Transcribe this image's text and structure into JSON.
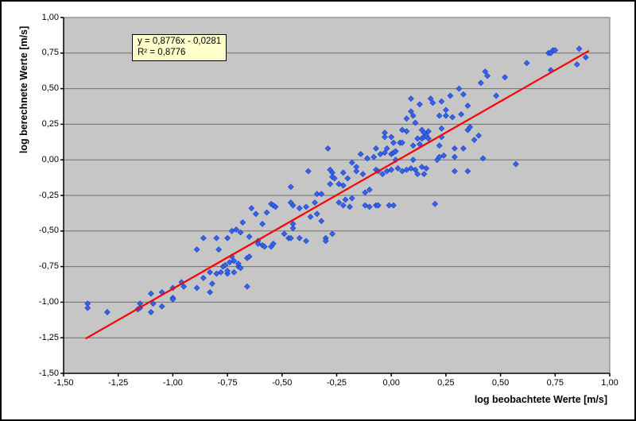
{
  "chart_data": {
    "type": "scatter",
    "title": "",
    "xlabel": "log beobachtete Werte [m/s]",
    "ylabel": "log berechnete Werte [m/s]",
    "xlim": [
      -1.5,
      1.0
    ],
    "ylim": [
      -1.5,
      1.0
    ],
    "grid": "horizontal gridlines only",
    "legend": "none",
    "plot_bg": "#C6C6C6",
    "grid_color": "#707070",
    "marker_color": "#3565EE",
    "marker_edge": "#1E3FC0",
    "x_ticks": [
      -1.5,
      -1.25,
      -1.0,
      -0.75,
      -0.5,
      -0.25,
      0.0,
      0.25,
      0.5,
      0.75,
      1.0
    ],
    "x_tick_labels": [
      "-1,50",
      "-1,25",
      "-1,00",
      "-0,75",
      "-0,50",
      "-0,25",
      "0,00",
      "0,25",
      "0,50",
      "0,75",
      "1,00"
    ],
    "y_ticks": [
      1.0,
      0.75,
      0.5,
      0.25,
      0.0,
      -0.25,
      -0.5,
      -0.75,
      -1.0,
      -1.25,
      -1.5
    ],
    "y_tick_labels": [
      "1,00",
      "0,75",
      "0,50",
      "0,25",
      "0,00",
      "-0,25",
      "-0,50",
      "-0,75",
      "-1,00",
      "-1,25",
      "-1,50"
    ],
    "trendline": {
      "slope": 0.8776,
      "intercept": -0.0281,
      "x_start": -1.4,
      "x_end": 0.905,
      "color": "#FF0000",
      "equation_label": "y = 0,8776x - 0,0281",
      "r2_label": "R² = 0,8776"
    },
    "points": [
      [
        -1.39,
        -1.01
      ],
      [
        -1.39,
        -1.04
      ],
      [
        -1.3,
        -1.07
      ],
      [
        -1.15,
        -1.01
      ],
      [
        -1.16,
        -1.05
      ],
      [
        -1.15,
        -1.04
      ],
      [
        -1.1,
        -0.94
      ],
      [
        -1.09,
        -1.01
      ],
      [
        -1.1,
        -1.07
      ],
      [
        -1.05,
        -0.93
      ],
      [
        -1.05,
        -1.03
      ],
      [
        -1.0,
        -0.9
      ],
      [
        -1.0,
        -0.97
      ],
      [
        -1.0,
        -0.98
      ],
      [
        -0.96,
        -0.86
      ],
      [
        -0.95,
        -0.89
      ],
      [
        -0.89,
        -0.9
      ],
      [
        -0.89,
        -0.63
      ],
      [
        -0.86,
        -0.83
      ],
      [
        -0.86,
        -0.55
      ],
      [
        -0.83,
        -0.79
      ],
      [
        -0.82,
        -0.87
      ],
      [
        -0.83,
        -0.93
      ],
      [
        -0.8,
        -0.8
      ],
      [
        -0.8,
        -0.55
      ],
      [
        -0.79,
        -0.63
      ],
      [
        -0.78,
        -0.79
      ],
      [
        -0.77,
        -0.75
      ],
      [
        -0.76,
        -0.74
      ],
      [
        -0.75,
        -0.8
      ],
      [
        -0.75,
        -0.78
      ],
      [
        -0.75,
        -0.55
      ],
      [
        -0.74,
        -0.72
      ],
      [
        -0.73,
        -0.68
      ],
      [
        -0.72,
        -0.71
      ],
      [
        -0.72,
        -0.79
      ],
      [
        -0.73,
        -0.5
      ],
      [
        -0.71,
        -0.49
      ],
      [
        -0.69,
        -0.51
      ],
      [
        -0.7,
        -0.75
      ],
      [
        -0.7,
        -0.73
      ],
      [
        -0.69,
        -0.76
      ],
      [
        -0.68,
        -0.44
      ],
      [
        -0.66,
        -0.69
      ],
      [
        -0.65,
        -0.68
      ],
      [
        -0.66,
        -0.89
      ],
      [
        -0.65,
        -0.54
      ],
      [
        -0.64,
        -0.34
      ],
      [
        -0.62,
        -0.38
      ],
      [
        -0.61,
        -0.57
      ],
      [
        -0.61,
        -0.59
      ],
      [
        -0.59,
        -0.6
      ],
      [
        -0.59,
        -0.45
      ],
      [
        -0.58,
        -0.61
      ],
      [
        -0.57,
        -0.37
      ],
      [
        -0.55,
        -0.31
      ],
      [
        -0.55,
        -0.61
      ],
      [
        -0.54,
        -0.32
      ],
      [
        -0.54,
        -0.59
      ],
      [
        -0.53,
        -0.33
      ],
      [
        -0.49,
        -0.52
      ],
      [
        -0.47,
        -0.55
      ],
      [
        -0.46,
        -0.55
      ],
      [
        -0.46,
        -0.19
      ],
      [
        -0.46,
        -0.3
      ],
      [
        -0.45,
        -0.32
      ],
      [
        -0.45,
        -0.45
      ],
      [
        -0.45,
        -0.48
      ],
      [
        -0.42,
        -0.34
      ],
      [
        -0.42,
        -0.55
      ],
      [
        -0.39,
        -0.33
      ],
      [
        -0.39,
        -0.57
      ],
      [
        -0.38,
        -0.08
      ],
      [
        -0.37,
        -0.4
      ],
      [
        -0.35,
        -0.3
      ],
      [
        -0.34,
        -0.24
      ],
      [
        -0.34,
        -0.38
      ],
      [
        -0.32,
        -0.24
      ],
      [
        -0.32,
        -0.43
      ],
      [
        -0.3,
        -0.55
      ],
      [
        -0.3,
        -0.57
      ],
      [
        -0.29,
        0.08
      ],
      [
        -0.28,
        -0.07
      ],
      [
        -0.28,
        -0.17
      ],
      [
        -0.27,
        -0.09
      ],
      [
        -0.27,
        -0.12
      ],
      [
        -0.26,
        -0.13
      ],
      [
        -0.27,
        -0.52
      ],
      [
        -0.24,
        -0.17
      ],
      [
        -0.24,
        -0.3
      ],
      [
        -0.22,
        -0.18
      ],
      [
        -0.22,
        -0.09
      ],
      [
        -0.22,
        -0.32
      ],
      [
        -0.21,
        -0.28
      ],
      [
        -0.2,
        -0.13
      ],
      [
        -0.19,
        -0.33
      ],
      [
        -0.18,
        -0.27
      ],
      [
        -0.18,
        -0.02
      ],
      [
        -0.16,
        -0.05
      ],
      [
        -0.16,
        -0.08
      ],
      [
        -0.14,
        0.04
      ],
      [
        -0.13,
        -0.1
      ],
      [
        -0.12,
        -0.23
      ],
      [
        -0.12,
        -0.32
      ],
      [
        -0.11,
        0.01
      ],
      [
        -0.1,
        -0.21
      ],
      [
        -0.1,
        -0.33
      ],
      [
        -0.08,
        0.02
      ],
      [
        -0.07,
        -0.07
      ],
      [
        -0.07,
        -0.32
      ],
      [
        -0.07,
        0.08
      ],
      [
        -0.06,
        -0.08
      ],
      [
        -0.05,
        0.04
      ],
      [
        -0.06,
        -0.32
      ],
      [
        -0.04,
        -0.1
      ],
      [
        -0.03,
        0.05
      ],
      [
        -0.03,
        0.19
      ],
      [
        -0.03,
        0.16
      ],
      [
        -0.02,
        0.08
      ],
      [
        -0.02,
        -0.08
      ],
      [
        -0.01,
        -0.32
      ],
      [
        0.0,
        0.04
      ],
      [
        0.0,
        0.16
      ],
      [
        0.0,
        -0.07
      ],
      [
        0.01,
        0.12
      ],
      [
        0.01,
        -0.32
      ],
      [
        0.01,
        0.05
      ],
      [
        0.02,
        0.06
      ],
      [
        0.02,
        0.0
      ],
      [
        0.03,
        -0.06
      ],
      [
        0.04,
        0.12
      ],
      [
        0.05,
        0.21
      ],
      [
        0.05,
        -0.08
      ],
      [
        0.05,
        0.12
      ],
      [
        0.07,
        0.29
      ],
      [
        0.07,
        0.2
      ],
      [
        0.07,
        -0.07
      ],
      [
        0.09,
        0.43
      ],
      [
        0.09,
        0.34
      ],
      [
        0.09,
        -0.06
      ],
      [
        0.1,
        0.1
      ],
      [
        0.1,
        0.0
      ],
      [
        0.1,
        0.31
      ],
      [
        0.11,
        -0.07
      ],
      [
        0.11,
        0.26
      ],
      [
        0.12,
        0.15
      ],
      [
        0.12,
        -0.1
      ],
      [
        0.13,
        0.39
      ],
      [
        0.13,
        0.11
      ],
      [
        0.14,
        0.21
      ],
      [
        0.14,
        -0.05
      ],
      [
        0.14,
        0.15
      ],
      [
        0.15,
        0.19
      ],
      [
        0.15,
        0.16
      ],
      [
        0.15,
        -0.1
      ],
      [
        0.16,
        0.17
      ],
      [
        0.16,
        -0.06
      ],
      [
        0.17,
        0.2
      ],
      [
        0.17,
        0.15
      ],
      [
        0.18,
        0.43
      ],
      [
        0.19,
        0.4
      ],
      [
        0.2,
        -0.31
      ],
      [
        0.21,
        0.0
      ],
      [
        0.22,
        0.02
      ],
      [
        0.22,
        0.1
      ],
      [
        0.22,
        0.31
      ],
      [
        0.23,
        0.16
      ],
      [
        0.23,
        0.41
      ],
      [
        0.23,
        0.22
      ],
      [
        0.24,
        0.03
      ],
      [
        0.25,
        0.35
      ],
      [
        0.25,
        0.31
      ],
      [
        0.27,
        0.45
      ],
      [
        0.28,
        0.3
      ],
      [
        0.29,
        0.08
      ],
      [
        0.29,
        -0.08
      ],
      [
        0.29,
        0.02
      ],
      [
        0.31,
        0.5
      ],
      [
        0.32,
        0.32
      ],
      [
        0.33,
        0.46
      ],
      [
        0.33,
        0.08
      ],
      [
        0.35,
        0.38
      ],
      [
        0.35,
        0.21
      ],
      [
        0.35,
        -0.08
      ],
      [
        0.36,
        0.23
      ],
      [
        0.38,
        0.14
      ],
      [
        0.4,
        0.17
      ],
      [
        0.41,
        0.54
      ],
      [
        0.42,
        0.01
      ],
      [
        0.43,
        0.62
      ],
      [
        0.44,
        0.59
      ],
      [
        0.48,
        0.45
      ],
      [
        0.52,
        0.58
      ],
      [
        0.57,
        -0.03
      ],
      [
        0.62,
        0.68
      ],
      [
        0.72,
        0.75
      ],
      [
        0.73,
        0.75
      ],
      [
        0.74,
        0.77
      ],
      [
        0.75,
        0.77
      ],
      [
        0.73,
        0.63
      ],
      [
        0.85,
        0.67
      ],
      [
        0.86,
        0.78
      ],
      [
        0.89,
        0.72
      ]
    ]
  }
}
